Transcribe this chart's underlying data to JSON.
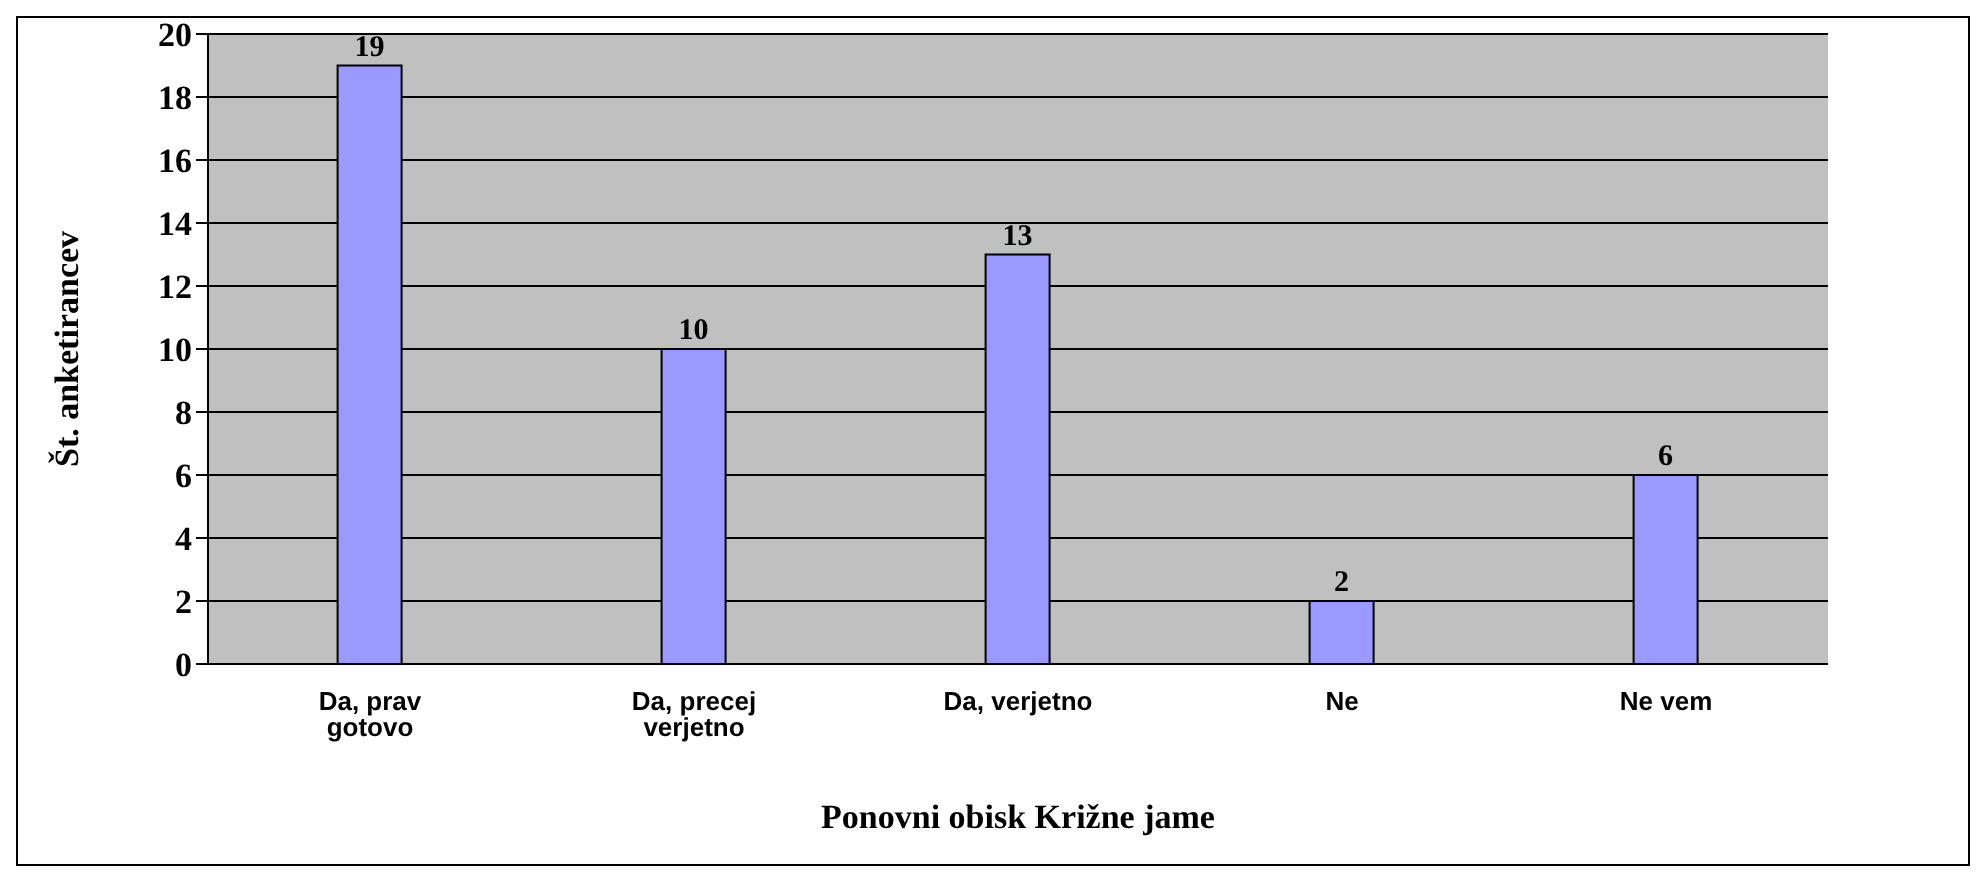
{
  "chart_data": {
    "type": "bar",
    "xlabel": "Ponovni obisk Križne jame",
    "ylabel": "Št. anketirancev",
    "categories": [
      "Da, prav gotovo",
      "Da, precej verjetno",
      "Da, verjetno",
      "Ne",
      "Ne vem"
    ],
    "values": [
      19,
      10,
      13,
      2,
      6
    ],
    "color": "#9999ff",
    "ylim": [
      0,
      20
    ],
    "yticks": [
      0,
      2,
      4,
      6,
      8,
      10,
      12,
      14,
      16,
      18,
      20
    ],
    "grid": "y",
    "data_labels": true,
    "legend": false
  }
}
